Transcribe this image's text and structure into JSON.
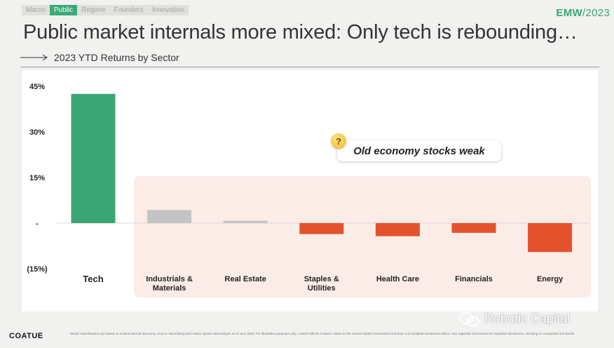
{
  "nav": {
    "tabs": [
      "Macro",
      "Public",
      "Regime",
      "Founders",
      "Innovation"
    ],
    "active": "Public"
  },
  "brand": {
    "name": "EMW",
    "year": "/2023"
  },
  "headline": "Public market internals more mixed: Only tech is rebounding…",
  "subhead": "2023 YTD Returns by Sector",
  "callout": "Old economy stocks weak",
  "footnote": "Sector classifications are based on Coatue internal taxonomy. Source: Bloomberg and Coatue opinion and analysis as of June 2023. For illustrative purposes only; content reflects Coatue's views on the current market environment and does not constitute investment advice. See Appendix-Disclosures for important disclosures, including on companies and trends.",
  "logo": "COATUE",
  "watermark": "Robotic Capital",
  "colors": {
    "tech": "#3aa676",
    "neutral": "#c4c4c4",
    "negative": "#e4522b",
    "accent": "#3aa676",
    "highlight_box": "#fbece7"
  },
  "chart_data": {
    "type": "bar",
    "title": "2023 YTD Returns by Sector",
    "categories": [
      "Tech",
      "Industrials & Materials",
      "Real Estate",
      "Staples & Utilities",
      "Health Care",
      "Financials",
      "Energy"
    ],
    "values": [
      42.5,
      4.3,
      0.8,
      -3.6,
      -4.3,
      -3.2,
      -9.5
    ],
    "bar_colors": [
      "#3aa676",
      "#c4c4c4",
      "#c4c4c4",
      "#e4522b",
      "#e4522b",
      "#e4522b",
      "#e4522b"
    ],
    "ytick_labels": [
      "45%",
      "30%",
      "15%",
      "-",
      "(15%)"
    ],
    "ytick_values": [
      45,
      30,
      15,
      0,
      -15
    ],
    "ylim": [
      -15,
      45
    ],
    "grid": false
  }
}
